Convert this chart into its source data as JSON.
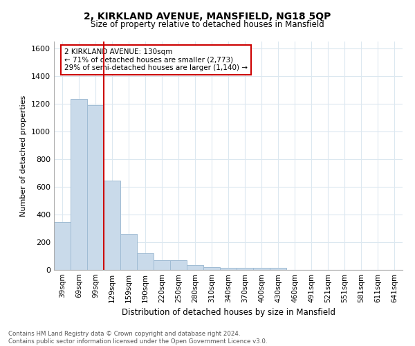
{
  "title": "2, KIRKLAND AVENUE, MANSFIELD, NG18 5QP",
  "subtitle": "Size of property relative to detached houses in Mansfield",
  "xlabel": "Distribution of detached houses by size in Mansfield",
  "ylabel": "Number of detached properties",
  "footer_line1": "Contains HM Land Registry data © Crown copyright and database right 2024.",
  "footer_line2": "Contains public sector information licensed under the Open Government Licence v3.0.",
  "bar_color": "#c9daea",
  "bar_edge_color": "#a0bcd4",
  "grid_color": "#dce8f0",
  "annotation_box_color": "#cc0000",
  "annotation_line_color": "#cc0000",
  "categories": [
    "39sqm",
    "69sqm",
    "99sqm",
    "129sqm",
    "159sqm",
    "190sqm",
    "220sqm",
    "250sqm",
    "280sqm",
    "310sqm",
    "340sqm",
    "370sqm",
    "400sqm",
    "430sqm",
    "460sqm",
    "491sqm",
    "521sqm",
    "551sqm",
    "581sqm",
    "611sqm",
    "641sqm"
  ],
  "values": [
    345,
    1235,
    1190,
    645,
    260,
    120,
    70,
    70,
    35,
    22,
    15,
    13,
    13,
    14,
    0,
    0,
    0,
    0,
    0,
    0,
    0
  ],
  "property_label": "2 KIRKLAND AVENUE: 130sqm",
  "smaller_pct": 71,
  "smaller_count": 2773,
  "larger_pct": 29,
  "larger_count": 1140,
  "red_line_index": 3.0,
  "ylim": [
    0,
    1650
  ],
  "yticks": [
    0,
    200,
    400,
    600,
    800,
    1000,
    1200,
    1400,
    1600
  ]
}
